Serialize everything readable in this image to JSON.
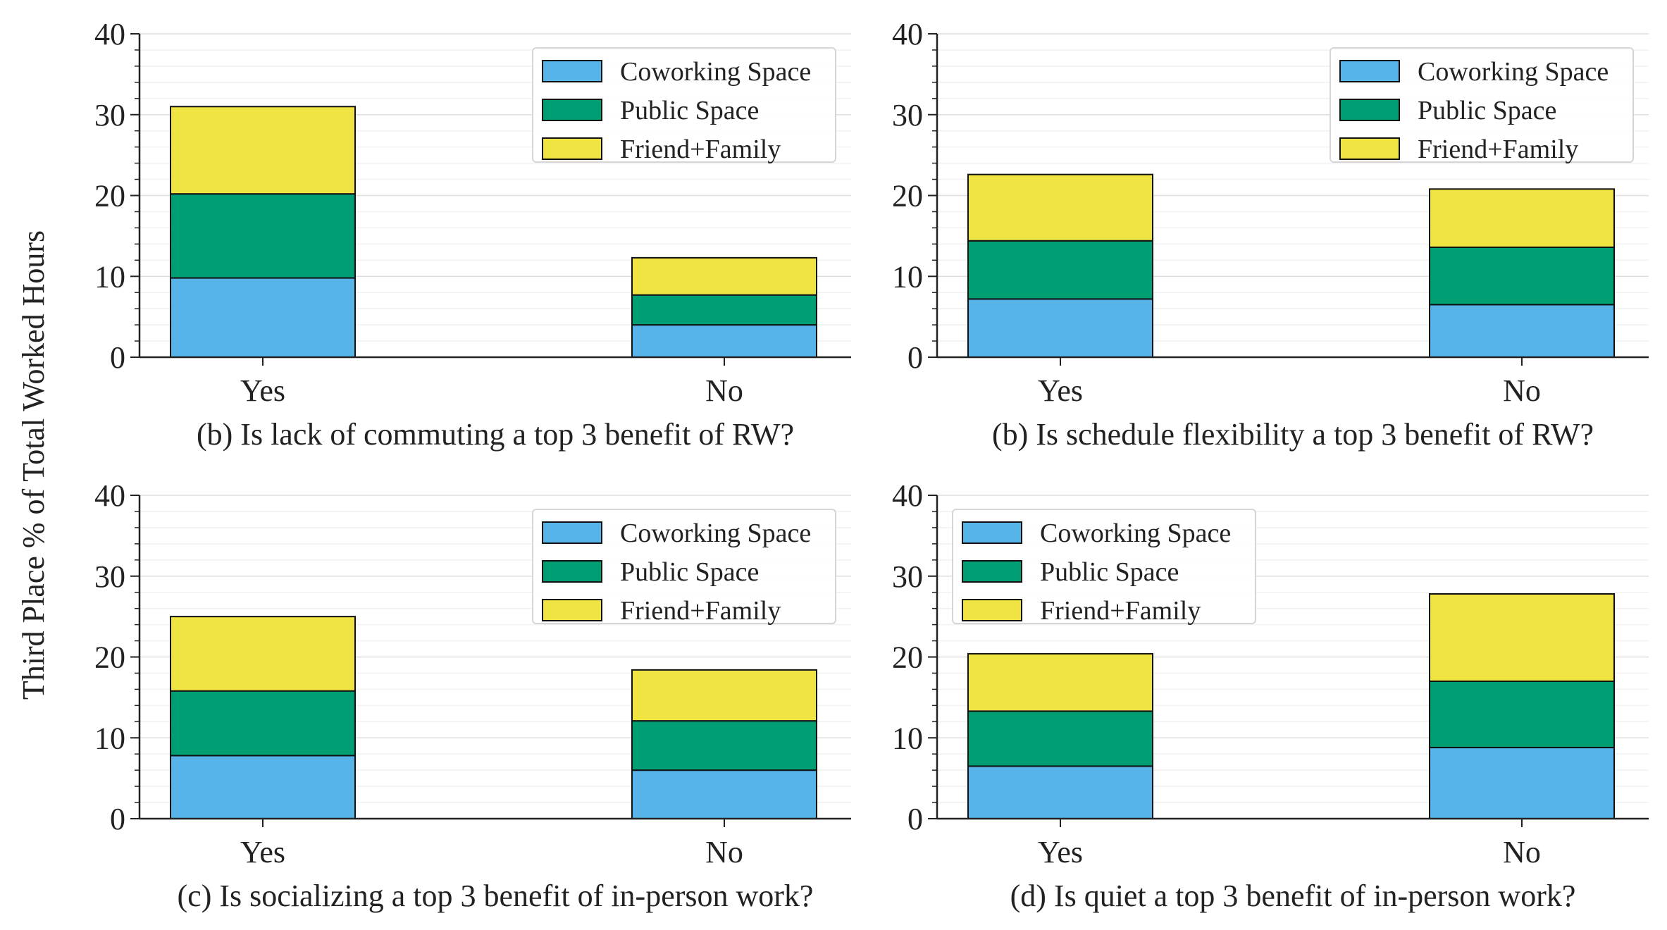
{
  "figure": {
    "ylabel": "Third Place % of Total Worked Hours",
    "colors": {
      "Coworking Space": "#56b4e9",
      "Public Space": "#009e73",
      "Friend+Family": "#f0e442"
    }
  },
  "chart_data": [
    {
      "type": "bar",
      "stacked": true,
      "title": "(b) Is lack of commuting a top 3 benefit of RW?",
      "categories": [
        "Yes",
        "No"
      ],
      "series": [
        {
          "name": "Coworking Space",
          "values": [
            9.8,
            4.0
          ]
        },
        {
          "name": "Public Space",
          "values": [
            10.4,
            3.7
          ]
        },
        {
          "name": "Friend+Family",
          "values": [
            10.8,
            4.6
          ]
        }
      ],
      "ylim": [
        0,
        40
      ],
      "yticks": [
        "0",
        "10",
        "20",
        "30",
        "40"
      ],
      "legend": "top-right",
      "grid": true
    },
    {
      "type": "bar",
      "stacked": true,
      "title": "(b) Is schedule flexibility a top 3 benefit of RW?",
      "categories": [
        "Yes",
        "No"
      ],
      "series": [
        {
          "name": "Coworking Space",
          "values": [
            7.2,
            6.5
          ]
        },
        {
          "name": "Public Space",
          "values": [
            7.2,
            7.1
          ]
        },
        {
          "name": "Friend+Family",
          "values": [
            8.2,
            7.2
          ]
        }
      ],
      "ylim": [
        0,
        40
      ],
      "yticks": [
        "0",
        "10",
        "20",
        "30",
        "40"
      ],
      "legend": "top-right",
      "grid": true
    },
    {
      "type": "bar",
      "stacked": true,
      "title": "(c) Is socializing a top 3 benefit of in-person work?",
      "categories": [
        "Yes",
        "No"
      ],
      "series": [
        {
          "name": "Coworking Space",
          "values": [
            7.8,
            6.0
          ]
        },
        {
          "name": "Public Space",
          "values": [
            8.0,
            6.1
          ]
        },
        {
          "name": "Friend+Family",
          "values": [
            9.2,
            6.3
          ]
        }
      ],
      "ylim": [
        0,
        40
      ],
      "yticks": [
        "0",
        "10",
        "20",
        "30",
        "40"
      ],
      "legend": "top-right",
      "grid": true
    },
    {
      "type": "bar",
      "stacked": true,
      "title": "(d) Is quiet a top 3 benefit of in-person work?",
      "categories": [
        "Yes",
        "No"
      ],
      "series": [
        {
          "name": "Coworking Space",
          "values": [
            6.5,
            8.8
          ]
        },
        {
          "name": "Public Space",
          "values": [
            6.8,
            8.2
          ]
        },
        {
          "name": "Friend+Family",
          "values": [
            7.1,
            10.8
          ]
        }
      ],
      "ylim": [
        0,
        40
      ],
      "yticks": [
        "0",
        "10",
        "20",
        "30",
        "40"
      ],
      "legend": "top-left",
      "grid": true
    }
  ]
}
